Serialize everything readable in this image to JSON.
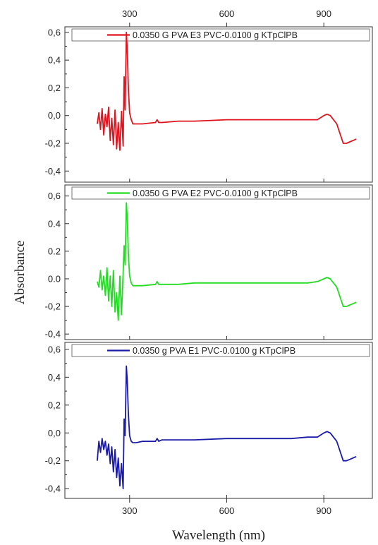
{
  "chart_data": {
    "type": "line",
    "xlabel": "Wavelength (nm)",
    "ylabel": "Absorbance",
    "xlim": [
      100,
      1050
    ],
    "x_ticks": [
      300,
      600,
      900
    ],
    "x_tick_labels": [
      "300",
      "600",
      "900"
    ],
    "panels": [
      {
        "id": "top",
        "color": "#e0141e",
        "legend": "0.0350 G PVA E3 PVC-0.0100 g KTpClPB",
        "ylim": [
          -0.48,
          0.64
        ],
        "y_ticks": [
          -0.4,
          -0.2,
          0.0,
          0.2,
          0.4,
          0.6
        ],
        "y_tick_labels": [
          "-0,4",
          "-0,2",
          "0,0",
          "0,2",
          "0,4",
          "0,6"
        ],
        "series": {
          "x": [
            200,
            205,
            210,
            215,
            220,
            225,
            230,
            235,
            240,
            245,
            250,
            255,
            260,
            265,
            270,
            275,
            280,
            283,
            286,
            290,
            293,
            296,
            300,
            305,
            310,
            320,
            340,
            380,
            385,
            390,
            400,
            450,
            500,
            600,
            700,
            800,
            850,
            880,
            900,
            910,
            920,
            940,
            960,
            970,
            980,
            990,
            1000
          ],
          "values": [
            -0.06,
            0.02,
            -0.1,
            0.05,
            -0.14,
            0.01,
            -0.08,
            0.06,
            -0.18,
            -0.02,
            -0.21,
            0.04,
            -0.24,
            -0.05,
            -0.25,
            0.03,
            -0.22,
            0.28,
            0.04,
            0.6,
            0.45,
            0.2,
            0.02,
            -0.03,
            -0.06,
            -0.06,
            -0.06,
            -0.05,
            -0.03,
            -0.05,
            -0.05,
            -0.04,
            -0.04,
            -0.03,
            -0.03,
            -0.03,
            -0.03,
            -0.03,
            0.0,
            0.01,
            0.0,
            -0.06,
            -0.2,
            -0.2,
            -0.19,
            -0.18,
            -0.17
          ]
        }
      },
      {
        "id": "middle",
        "color": "#22dd22",
        "legend": "0.0350 G PVA E2 PVC-0.0100 g KTpClPB",
        "ylim": [
          -0.44,
          0.68
        ],
        "y_ticks": [
          -0.4,
          -0.2,
          0.0,
          0.2,
          0.4,
          0.6
        ],
        "y_tick_labels": [
          "-0,4",
          "-0,2",
          "0.0",
          "0.2",
          "0.4",
          "0,6"
        ],
        "series": {
          "x": [
            200,
            205,
            210,
            215,
            220,
            225,
            230,
            235,
            240,
            245,
            250,
            255,
            260,
            265,
            270,
            275,
            280,
            283,
            286,
            290,
            293,
            296,
            300,
            305,
            310,
            320,
            340,
            380,
            385,
            390,
            400,
            450,
            500,
            600,
            700,
            800,
            850,
            880,
            900,
            910,
            920,
            940,
            960,
            970,
            980,
            990,
            1000
          ],
          "values": [
            -0.02,
            -0.06,
            0.06,
            -0.08,
            0.02,
            -0.12,
            0.08,
            -0.16,
            0.02,
            -0.2,
            0.06,
            -0.24,
            -0.1,
            -0.3,
            0.02,
            -0.26,
            0.04,
            0.24,
            0.1,
            0.55,
            0.42,
            0.18,
            0.02,
            -0.03,
            -0.05,
            -0.05,
            -0.05,
            -0.04,
            -0.02,
            -0.04,
            -0.04,
            -0.04,
            -0.03,
            -0.03,
            -0.03,
            -0.03,
            -0.03,
            -0.02,
            0.0,
            0.01,
            0.0,
            -0.06,
            -0.2,
            -0.2,
            -0.19,
            -0.18,
            -0.17
          ]
        }
      },
      {
        "id": "bottom",
        "color": "#1a1aa8",
        "legend": "0.0350 g PVA E1 PVC-0.0100 g KTpClPB",
        "ylim": [
          -0.47,
          0.65
        ],
        "y_ticks": [
          -0.4,
          -0.2,
          0.0,
          0.2,
          0.4,
          0.6
        ],
        "y_tick_labels": [
          "-0,4",
          "-0,2",
          "0,0",
          "0,2",
          "0,4",
          "0,6"
        ],
        "series": {
          "x": [
            200,
            205,
            210,
            215,
            220,
            225,
            230,
            235,
            240,
            245,
            250,
            255,
            260,
            265,
            270,
            275,
            280,
            283,
            286,
            290,
            293,
            296,
            300,
            305,
            310,
            320,
            340,
            380,
            385,
            390,
            400,
            450,
            500,
            600,
            700,
            800,
            850,
            880,
            900,
            910,
            920,
            940,
            960,
            970,
            980,
            990,
            1000
          ],
          "values": [
            -0.2,
            -0.06,
            -0.14,
            -0.04,
            -0.12,
            -0.06,
            -0.16,
            -0.08,
            -0.22,
            -0.1,
            -0.28,
            -0.12,
            -0.32,
            -0.18,
            -0.38,
            -0.22,
            -0.4,
            0.1,
            -0.02,
            0.48,
            0.36,
            0.14,
            -0.02,
            -0.06,
            -0.07,
            -0.07,
            -0.06,
            -0.06,
            -0.04,
            -0.06,
            -0.05,
            -0.05,
            -0.05,
            -0.04,
            -0.04,
            -0.04,
            -0.03,
            -0.03,
            0.0,
            0.01,
            0.0,
            -0.06,
            -0.2,
            -0.2,
            -0.19,
            -0.18,
            -0.17
          ]
        }
      }
    ]
  }
}
